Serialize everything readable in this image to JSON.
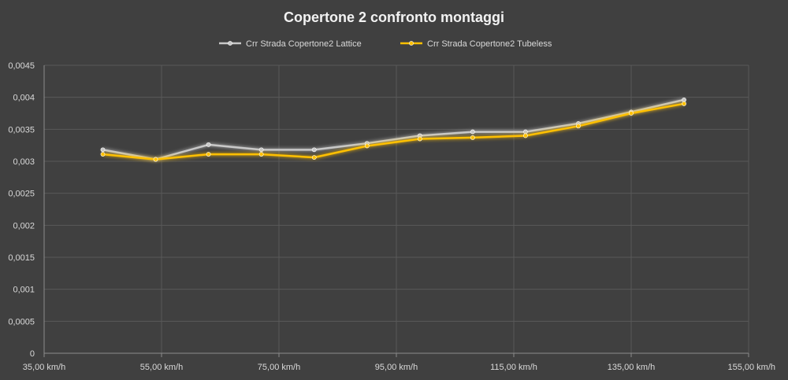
{
  "chart_data": {
    "type": "scatter",
    "title": "Copertone 2 confronto montaggi",
    "xlabel": "",
    "ylabel": "",
    "xlim": [
      35,
      155
    ],
    "ylim": [
      0,
      0.0045
    ],
    "x_ticks": [
      35,
      55,
      75,
      95,
      115,
      135,
      155
    ],
    "x_tick_labels": [
      "35,00 km/h",
      "55,00 km/h",
      "75,00 km/h",
      "95,00 km/h",
      "115,00 km/h",
      "135,00 km/h",
      "155,00 km/h"
    ],
    "y_ticks": [
      0,
      0.0005,
      0.001,
      0.0015,
      0.002,
      0.0025,
      0.003,
      0.0035,
      0.004,
      0.0045
    ],
    "y_tick_labels": [
      "0",
      "0,0005",
      "0,001",
      "0,0015",
      "0,002",
      "0,0025",
      "0,003",
      "0,0035",
      "0,004",
      "0,0045"
    ],
    "grid": true,
    "legend_position": "top",
    "series": [
      {
        "name": "Crr Strada Copertone2 Lattice",
        "color": "#c8c8c8",
        "x": [
          45,
          54,
          63,
          72,
          81,
          90,
          99,
          108,
          117,
          126,
          135,
          144
        ],
        "y": [
          0.00318,
          0.00303,
          0.00326,
          0.00318,
          0.00318,
          0.00328,
          0.0034,
          0.00346,
          0.00346,
          0.00359,
          0.00377,
          0.00396
        ]
      },
      {
        "name": "Crr Strada Copertone2 Tubeless",
        "color": "#ffc000",
        "x": [
          45,
          54,
          63,
          72,
          81,
          90,
          99,
          108,
          117,
          126,
          135,
          144
        ],
        "y": [
          0.00311,
          0.00303,
          0.00311,
          0.00311,
          0.00306,
          0.00324,
          0.00335,
          0.00337,
          0.0034,
          0.00355,
          0.00375,
          0.0039
        ]
      }
    ]
  }
}
